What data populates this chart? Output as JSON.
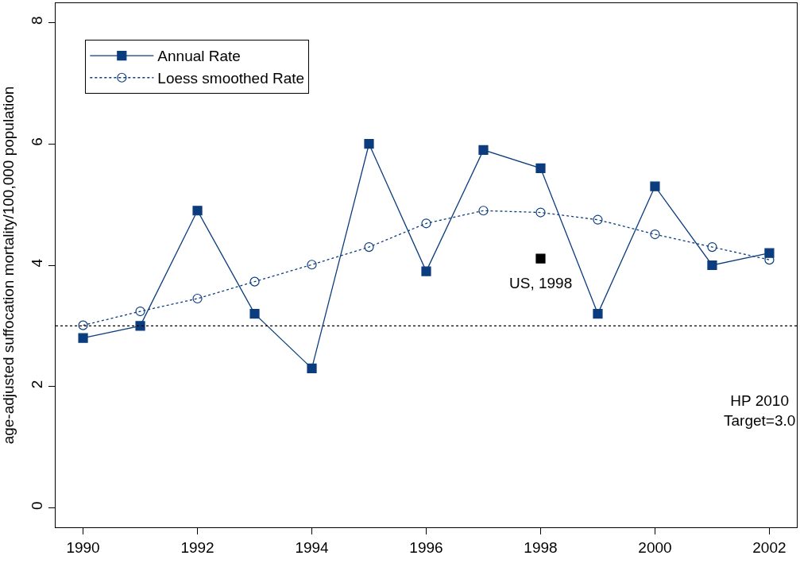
{
  "chart_data": {
    "type": "line",
    "ylabel": "age-adjusted suffocation mortality/100,000 population",
    "x": [
      1990,
      1991,
      1992,
      1993,
      1994,
      1995,
      1996,
      1997,
      1998,
      1999,
      2000,
      2001,
      2002
    ],
    "series": [
      {
        "name": "Annual Rate",
        "color": "#0b3d7e",
        "marker": "square",
        "line_style": "solid",
        "values": [
          2.8,
          3.0,
          4.9,
          3.2,
          2.3,
          6.0,
          3.9,
          5.9,
          5.6,
          3.2,
          5.3,
          4.0,
          4.2
        ]
      },
      {
        "name": "Loess smoothed Rate",
        "color": "#0b3d7e",
        "marker": "circle",
        "line_style": "dotted",
        "values": [
          3.01,
          3.24,
          3.45,
          3.73,
          4.01,
          4.3,
          4.69,
          4.9,
          4.87,
          4.75,
          4.51,
          4.3,
          4.09
        ]
      },
      {
        "color": "#000000",
        "type": "scatter",
        "marker": "square",
        "x": [
          1998
        ],
        "values": [
          4.11
        ]
      }
    ],
    "annotations": [
      {
        "text": "US, 1998",
        "x": 1998,
        "y": 4.11
      },
      "HP 2010\nTarget=3.0"
    ],
    "ref_lines": [
      {
        "axis": "y",
        "value": 3.0,
        "color": "#000000",
        "line_style": "dotted"
      }
    ],
    "xlim": [
      1989.52,
      2002.48
    ],
    "ylim": [
      -0.32,
      8.32
    ],
    "xticks": [
      1990,
      1992,
      1994,
      1996,
      1998,
      2000,
      2002
    ],
    "yticks": [
      0,
      2,
      4,
      6,
      8
    ],
    "legend": "top left"
  }
}
